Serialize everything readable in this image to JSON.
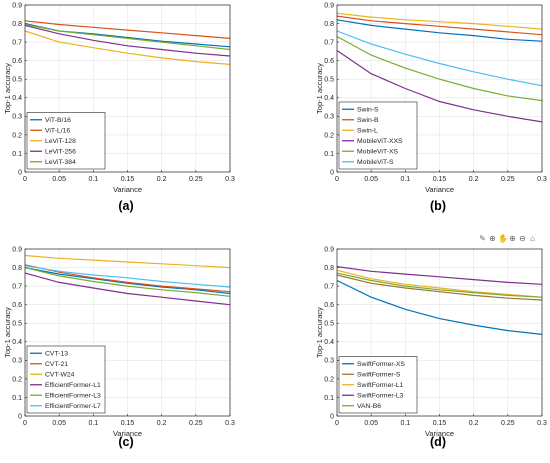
{
  "chart_data": [
    {
      "type": "line",
      "panel_label": "(a)",
      "xlabel": "Variance",
      "ylabel": "Top-1 accuracy",
      "xlim": [
        0,
        0.3
      ],
      "ylim": [
        0,
        0.9
      ],
      "xticks": [
        0,
        0.05,
        0.1,
        0.15,
        0.2,
        0.25,
        0.3
      ],
      "yticks": [
        0,
        0.1,
        0.2,
        0.3,
        0.4,
        0.5,
        0.6,
        0.7,
        0.8,
        0.9
      ],
      "xtick_labels": [
        "0",
        "0.05",
        "0.1",
        "0.15",
        "0.2",
        "0.25",
        "0.3"
      ],
      "ytick_labels": [
        "0",
        "0.1",
        "0.2",
        "0.3",
        "0.4",
        "0.5",
        "0.6",
        "0.7",
        "0.8",
        "0.9"
      ],
      "grid": true,
      "legend_position": "bottom-left",
      "x": [
        0,
        0.05,
        0.1,
        0.15,
        0.2,
        0.25,
        0.3
      ],
      "series": [
        {
          "name": "ViT-B/16",
          "color": "#0072BD",
          "values": [
            0.8,
            0.76,
            0.745,
            0.725,
            0.705,
            0.69,
            0.675
          ]
        },
        {
          "name": "ViT-L/16",
          "color": "#D95319",
          "values": [
            0.815,
            0.795,
            0.78,
            0.765,
            0.75,
            0.735,
            0.72
          ]
        },
        {
          "name": "LeViT-128",
          "color": "#EDB120",
          "values": [
            0.76,
            0.7,
            0.67,
            0.64,
            0.615,
            0.595,
            0.58
          ]
        },
        {
          "name": "LeViT-256",
          "color": "#7E2F8E",
          "values": [
            0.79,
            0.745,
            0.71,
            0.68,
            0.66,
            0.64,
            0.625
          ]
        },
        {
          "name": "LeViT-384",
          "color": "#77AC30",
          "values": [
            0.795,
            0.76,
            0.74,
            0.72,
            0.7,
            0.68,
            0.66
          ]
        }
      ]
    },
    {
      "type": "line",
      "panel_label": "(b)",
      "xlabel": "Variance",
      "ylabel": "Top-1 accuracy",
      "xlim": [
        0,
        0.3
      ],
      "ylim": [
        0,
        0.9
      ],
      "xticks": [
        0,
        0.05,
        0.1,
        0.15,
        0.2,
        0.25,
        0.3
      ],
      "yticks": [
        0,
        0.1,
        0.2,
        0.3,
        0.4,
        0.5,
        0.6,
        0.7,
        0.8,
        0.9
      ],
      "xtick_labels": [
        "0",
        "0.05",
        "0.1",
        "0.15",
        "0.2",
        "0.25",
        "0.3"
      ],
      "ytick_labels": [
        "0",
        "0.1",
        "0.2",
        "0.3",
        "0.4",
        "0.5",
        "0.6",
        "0.7",
        "0.8",
        "0.9"
      ],
      "grid": true,
      "legend_position": "bottom-left",
      "x": [
        0,
        0.05,
        0.1,
        0.15,
        0.2,
        0.25,
        0.3
      ],
      "series": [
        {
          "name": "Swin-S",
          "color": "#0072BD",
          "values": [
            0.82,
            0.79,
            0.77,
            0.75,
            0.735,
            0.715,
            0.705
          ]
        },
        {
          "name": "Swin-B",
          "color": "#D95319",
          "values": [
            0.84,
            0.815,
            0.8,
            0.785,
            0.77,
            0.755,
            0.74
          ]
        },
        {
          "name": "Swin-L",
          "color": "#EDB120",
          "values": [
            0.855,
            0.835,
            0.82,
            0.81,
            0.8,
            0.785,
            0.77
          ]
        },
        {
          "name": "MobileViT-XXS",
          "color": "#7E2F8E",
          "values": [
            0.655,
            0.53,
            0.45,
            0.38,
            0.335,
            0.3,
            0.27
          ]
        },
        {
          "name": "MobileViT-XS",
          "color": "#77AC30",
          "values": [
            0.73,
            0.63,
            0.56,
            0.5,
            0.45,
            0.41,
            0.385
          ]
        },
        {
          "name": "MobileViT-S",
          "color": "#4DBEEE",
          "values": [
            0.76,
            0.69,
            0.635,
            0.585,
            0.54,
            0.5,
            0.465
          ]
        }
      ]
    },
    {
      "type": "line",
      "panel_label": "(c)",
      "xlabel": "Variance",
      "ylabel": "Top-1 accuracy",
      "xlim": [
        0,
        0.3
      ],
      "ylim": [
        0,
        0.9
      ],
      "xticks": [
        0,
        0.05,
        0.1,
        0.15,
        0.2,
        0.25,
        0.3
      ],
      "yticks": [
        0,
        0.1,
        0.2,
        0.3,
        0.4,
        0.5,
        0.6,
        0.7,
        0.8,
        0.9
      ],
      "xtick_labels": [
        "0",
        "0.05",
        "0.1",
        "0.15",
        "0.2",
        "0.25",
        "0.3"
      ],
      "ytick_labels": [
        "0",
        "0.1",
        "0.2",
        "0.3",
        "0.4",
        "0.5",
        "0.6",
        "0.7",
        "0.8",
        "0.9"
      ],
      "grid": true,
      "legend_position": "bottom-left",
      "x": [
        0,
        0.05,
        0.1,
        0.15,
        0.2,
        0.25,
        0.3
      ],
      "series": [
        {
          "name": "CVT-13",
          "color": "#0072BD",
          "values": [
            0.8,
            0.765,
            0.74,
            0.715,
            0.695,
            0.68,
            0.66
          ]
        },
        {
          "name": "CVT-21",
          "color": "#D95319",
          "values": [
            0.815,
            0.775,
            0.745,
            0.72,
            0.7,
            0.685,
            0.67
          ]
        },
        {
          "name": "CVT-W24",
          "color": "#EDB120",
          "values": [
            0.865,
            0.85,
            0.84,
            0.83,
            0.82,
            0.81,
            0.8
          ]
        },
        {
          "name": "EfficientFormer-L1",
          "color": "#7E2F8E",
          "values": [
            0.77,
            0.72,
            0.69,
            0.66,
            0.64,
            0.62,
            0.6
          ]
        },
        {
          "name": "EfficientFormer-L3",
          "color": "#77AC30",
          "values": [
            0.8,
            0.755,
            0.725,
            0.7,
            0.68,
            0.665,
            0.645
          ]
        },
        {
          "name": "EfficientFormer-L7",
          "color": "#4DBEEE",
          "values": [
            0.81,
            0.78,
            0.76,
            0.745,
            0.725,
            0.71,
            0.695
          ]
        }
      ]
    },
    {
      "type": "line",
      "panel_label": "(d)",
      "xlabel": "Variance",
      "ylabel": "Top-1 accuracy",
      "xlim": [
        0,
        0.3
      ],
      "ylim": [
        0,
        0.9
      ],
      "xticks": [
        0,
        0.05,
        0.1,
        0.15,
        0.2,
        0.25,
        0.3
      ],
      "yticks": [
        0,
        0.1,
        0.2,
        0.3,
        0.4,
        0.5,
        0.6,
        0.7,
        0.8,
        0.9
      ],
      "xtick_labels": [
        "0",
        "0.05",
        "0.1",
        "0.15",
        "0.2",
        "0.25",
        "0.3"
      ],
      "ytick_labels": [
        "0",
        "0.1",
        "0.2",
        "0.3",
        "0.4",
        "0.5",
        "0.6",
        "0.7",
        "0.8",
        "0.9"
      ],
      "grid": true,
      "legend_position": "bottom-left",
      "x": [
        0,
        0.05,
        0.1,
        0.15,
        0.2,
        0.25,
        0.3
      ],
      "series": [
        {
          "name": "SwiftFormer-XS",
          "color": "#0072BD",
          "values": [
            0.73,
            0.64,
            0.575,
            0.525,
            0.49,
            0.46,
            0.44
          ]
        },
        {
          "name": "SwiftFormer-S",
          "color": "#A2742C",
          "values": [
            0.76,
            0.715,
            0.69,
            0.67,
            0.65,
            0.635,
            0.625
          ]
        },
        {
          "name": "SwiftFormer-L1",
          "color": "#EDB120",
          "values": [
            0.785,
            0.74,
            0.71,
            0.69,
            0.67,
            0.655,
            0.64
          ]
        },
        {
          "name": "SwiftFormer-L3",
          "color": "#7E2F8E",
          "values": [
            0.805,
            0.78,
            0.765,
            0.75,
            0.735,
            0.72,
            0.71
          ]
        },
        {
          "name": "VAN-B6",
          "color": "#77AC30",
          "values": [
            0.77,
            0.73,
            0.7,
            0.68,
            0.665,
            0.65,
            0.64
          ]
        }
      ]
    }
  ],
  "toolbar": {
    "icons": [
      "brush-icon",
      "datatip-icon",
      "pan-icon",
      "zoom-in-icon",
      "zoom-out-icon",
      "home-icon"
    ]
  }
}
